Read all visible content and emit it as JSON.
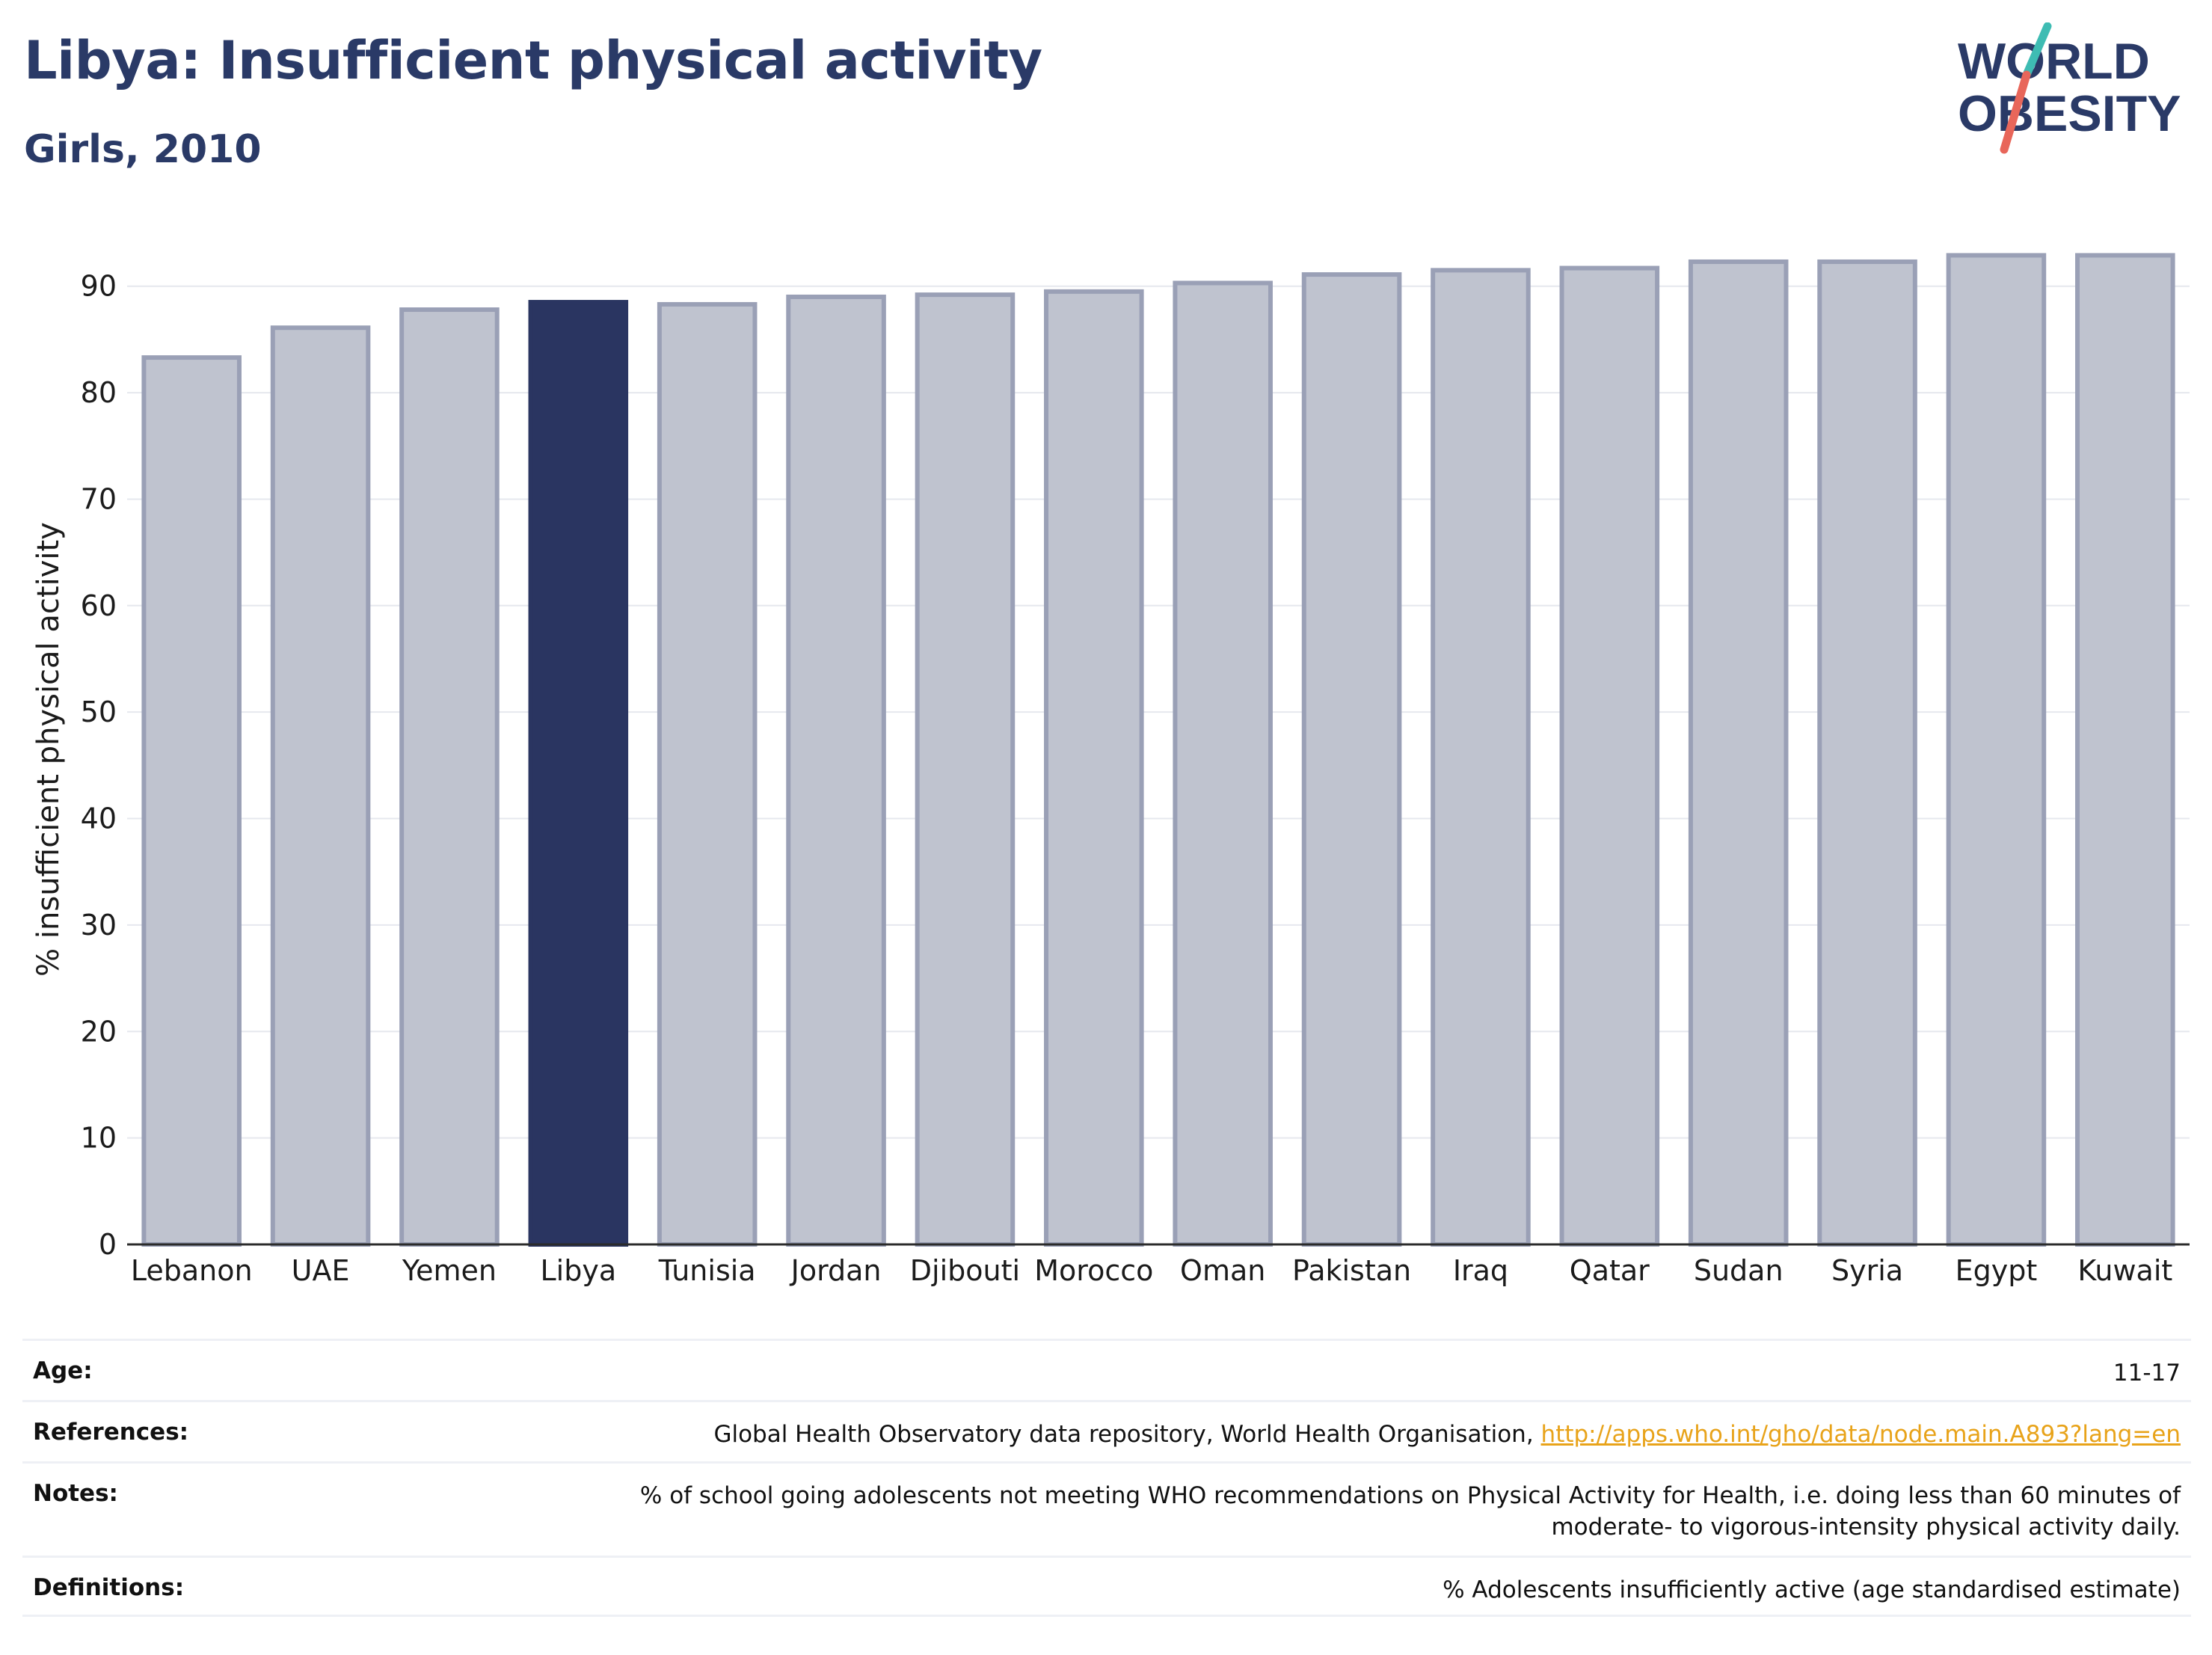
{
  "header": {
    "title": "Libya: Insufficient physical activity",
    "subtitle": "Girls, 2010"
  },
  "logo": {
    "line1": "WORLD",
    "line2": "OBESITY",
    "accent_teal": "#3ebcb3",
    "accent_red": "#e8665a",
    "text_color": "#2a3a67"
  },
  "colors": {
    "highlight_bar": "#2a3561",
    "other_bar_fill": "#bfc3cf",
    "other_bar_stroke": "#9aa0b6"
  },
  "chart_data": {
    "type": "bar",
    "title": "Libya: Insufficient physical activity",
    "subtitle": "Girls, 2010",
    "xlabel": "",
    "ylabel": "% insufficient physical activity",
    "ylim": [
      0,
      93
    ],
    "yticks": [
      0,
      10,
      20,
      30,
      40,
      50,
      60,
      70,
      80,
      90
    ],
    "grid": true,
    "highlight": "Libya",
    "categories": [
      "Lebanon",
      "UAE",
      "Yemen",
      "Libya",
      "Tunisia",
      "Jordan",
      "Djibouti",
      "Morocco",
      "Oman",
      "Pakistan",
      "Iraq",
      "Qatar",
      "Sudan",
      "Syria",
      "Egypt",
      "Kuwait"
    ],
    "values": [
      83.3,
      86.1,
      87.8,
      88.5,
      88.3,
      89.0,
      89.2,
      89.5,
      90.3,
      91.1,
      91.5,
      91.7,
      92.3,
      92.3,
      92.9,
      92.9
    ]
  },
  "meta": {
    "age_label": "Age:",
    "age_value": "11-17",
    "references_label": "References:",
    "references_text": "Global Health Observatory data repository, World Health Organisation, ",
    "references_link": "http://apps.who.int/gho/data/node.main.A893?lang=en",
    "notes_label": "Notes:",
    "notes_value": "% of school going adolescents not meeting WHO recommendations on Physical Activity for Health, i.e. doing less than 60 minutes of moderate- to vigorous-intensity physical activity daily.",
    "definitions_label": "Definitions:",
    "definitions_value": "% Adolescents insufficiently active (age standardised estimate)"
  }
}
